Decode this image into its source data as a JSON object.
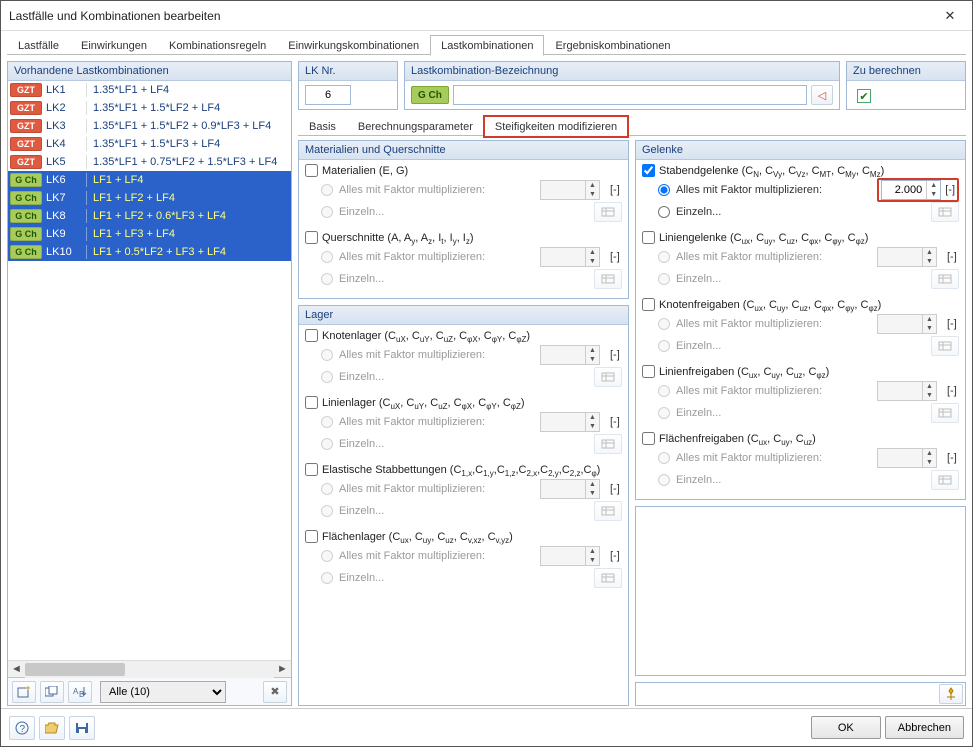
{
  "window": {
    "title": "Lastfälle und Kombinationen bearbeiten"
  },
  "mainTabs": {
    "items": [
      "Lastfälle",
      "Einwirkungen",
      "Kombinationsregeln",
      "Einwirkungskombinationen",
      "Lastkombinationen",
      "Ergebniskombinationen"
    ],
    "activeIndex": 4
  },
  "leftPane": {
    "header": "Vorhandene Lastkombinationen",
    "rows": [
      {
        "tag": "GZT",
        "tagBg": "#e05a40",
        "name": "LK1",
        "desc": "1.35*LF1 + LF4",
        "selected": false
      },
      {
        "tag": "GZT",
        "tagBg": "#e05a40",
        "name": "LK2",
        "desc": "1.35*LF1 + 1.5*LF2 + LF4",
        "selected": false
      },
      {
        "tag": "GZT",
        "tagBg": "#e05a40",
        "name": "LK3",
        "desc": "1.35*LF1 + 1.5*LF2 + 0.9*LF3 + LF4",
        "selected": false
      },
      {
        "tag": "GZT",
        "tagBg": "#e05a40",
        "name": "LK4",
        "desc": "1.35*LF1 + 1.5*LF3 + LF4",
        "selected": false
      },
      {
        "tag": "GZT",
        "tagBg": "#e05a40",
        "name": "LK5",
        "desc": "1.35*LF1 + 0.75*LF2 + 1.5*LF3 + LF4",
        "selected": false
      },
      {
        "tag": "G Ch",
        "tagBg": "#a8cc5c",
        "name": "LK6",
        "desc": "LF1 + LF4",
        "selected": true
      },
      {
        "tag": "G Ch",
        "tagBg": "#a8cc5c",
        "name": "LK7",
        "desc": "LF1 + LF2 + LF4",
        "selected": true
      },
      {
        "tag": "G Ch",
        "tagBg": "#a8cc5c",
        "name": "LK8",
        "desc": "LF1 + LF2 + 0.6*LF3 + LF4",
        "selected": true
      },
      {
        "tag": "G Ch",
        "tagBg": "#a8cc5c",
        "name": "LK9",
        "desc": "LF1 + LF3 + LF4",
        "selected": true
      },
      {
        "tag": "G Ch",
        "tagBg": "#a8cc5c",
        "name": "LK10",
        "desc": "LF1 + 0.5*LF2 + LF3 + LF4",
        "selected": true
      }
    ],
    "filter": "Alle (10)"
  },
  "top": {
    "lkNr": {
      "label": "LK Nr.",
      "value": "6"
    },
    "bezeichnung": {
      "label": "Lastkombination-Bezeichnung",
      "typeTag": "G Ch",
      "value": ""
    },
    "zuBerechnen": {
      "label": "Zu berechnen",
      "checked": true
    }
  },
  "subTabs": {
    "items": [
      "Basis",
      "Berechnungsparameter",
      "Steifigkeiten modifizieren"
    ],
    "activeIndex": 2
  },
  "panels": {
    "materialien": {
      "title": "Materialien und Querschnitte",
      "groups": [
        {
          "checkLabel": "Materialien (E, G)",
          "checked": false,
          "factorLabel": "Alles mit Faktor multiplizieren:",
          "einzelnLabel": "Einzeln...",
          "value": "",
          "unit": "[-]"
        },
        {
          "checkLabelHtml": "Querschnitte (A, A<sub>y</sub>, A<sub>z</sub>, I<sub>t</sub>, I<sub>y</sub>, I<sub>z</sub>)",
          "checked": false,
          "factorLabel": "Alles mit Faktor multiplizieren:",
          "einzelnLabel": "Einzeln...",
          "value": "",
          "unit": "[-]"
        }
      ]
    },
    "lager": {
      "title": "Lager",
      "groups": [
        {
          "checkLabelHtml": "Knotenlager (C<sub>uX</sub>, C<sub>uY</sub>, C<sub>uZ</sub>, C<sub>φX</sub>, C<sub>φY</sub>, C<sub>φZ</sub>)",
          "checked": false,
          "factorLabel": "Alles mit Faktor multiplizieren:",
          "einzelnLabel": "Einzeln...",
          "value": "",
          "unit": "[-]"
        },
        {
          "checkLabelHtml": "Linienlager (C<sub>uX</sub>, C<sub>uY</sub>, C<sub>uZ</sub>, C<sub>φX</sub>, C<sub>φY</sub>, C<sub>φZ</sub>)",
          "checked": false,
          "factorLabel": "Alles mit Faktor multiplizieren:",
          "einzelnLabel": "Einzeln...",
          "value": "",
          "unit": "[-]"
        },
        {
          "checkLabelHtml": "Elastische Stabbettungen (C<sub>1,x</sub>,C<sub>1,y</sub>,C<sub>1,z</sub>,C<sub>2,x</sub>,C<sub>2,y</sub>,C<sub>2,z</sub>,C<sub>φ</sub>)",
          "checked": false,
          "factorLabel": "Alles mit Faktor multiplizieren:",
          "einzelnLabel": "Einzeln...",
          "value": "",
          "unit": "[-]"
        },
        {
          "checkLabelHtml": "Flächenlager (C<sub>ux</sub>, C<sub>uy</sub>, C<sub>uz</sub>, C<sub>v,xz</sub>, C<sub>v,yz</sub>)",
          "checked": false,
          "factorLabel": "Alles mit Faktor multiplizieren:",
          "einzelnLabel": "Einzeln...",
          "value": "",
          "unit": "[-]"
        }
      ]
    },
    "gelenke": {
      "title": "Gelenke",
      "groups": [
        {
          "checkLabelHtml": "Stabendgelenke (C<sub>N</sub>, C<sub>Vy</sub>, C<sub>Vz</sub>, C<sub>MT</sub>, C<sub>My</sub>, C<sub>Mz</sub>)",
          "checked": true,
          "active": true,
          "factorLabel": "Alles mit Faktor multiplizieren:",
          "einzelnLabel": "Einzeln...",
          "value": "2.000",
          "unit": "[-]",
          "highlight": true
        },
        {
          "checkLabelHtml": "Liniengelenke (C<sub>ux</sub>, C<sub>uy</sub>, C<sub>uz</sub>, C<sub>φx</sub>, C<sub>φy</sub>, C<sub>φz</sub>)",
          "checked": false,
          "factorLabel": "Alles mit Faktor multiplizieren:",
          "einzelnLabel": "Einzeln...",
          "value": "",
          "unit": "[-]"
        },
        {
          "checkLabelHtml": "Knotenfreigaben (C<sub>ux</sub>, C<sub>uy</sub>, C<sub>uz</sub>, C<sub>φx</sub>, C<sub>φy</sub>, C<sub>φz</sub>)",
          "checked": false,
          "factorLabel": "Alles mit Faktor multiplizieren:",
          "einzelnLabel": "Einzeln...",
          "value": "",
          "unit": "[-]"
        },
        {
          "checkLabelHtml": "Linienfreigaben (C<sub>ux</sub>, C<sub>uy</sub>, C<sub>uz</sub>, C<sub>φz</sub>)",
          "checked": false,
          "factorLabel": "Alles mit Faktor multiplizieren:",
          "einzelnLabel": "Einzeln...",
          "value": "",
          "unit": "[-]"
        },
        {
          "checkLabelHtml": "Flächenfreigaben (C<sub>ux</sub>, C<sub>uy</sub>, C<sub>uz</sub>)",
          "checked": false,
          "factorLabel": "Alles mit Faktor multiplizieren:",
          "einzelnLabel": "Einzeln...",
          "value": "",
          "unit": "[-]"
        }
      ]
    }
  },
  "footer": {
    "ok": "OK",
    "cancel": "Abbrechen"
  }
}
